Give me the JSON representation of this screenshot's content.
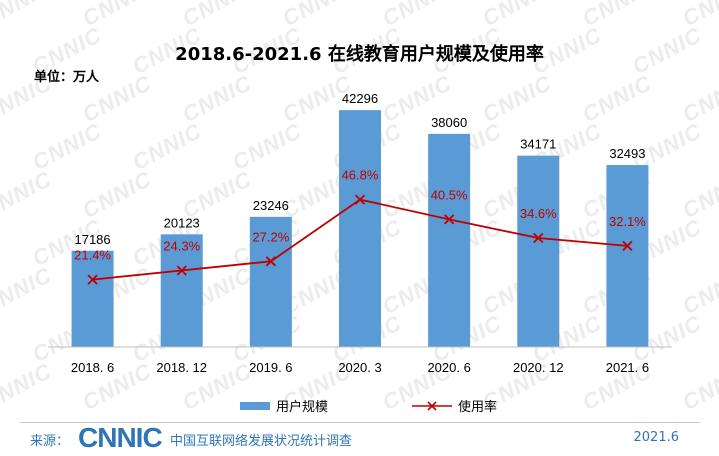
{
  "chart_data": {
    "type": "bar",
    "title": "2018.6-2021.6 在线教育用户规模及使用率",
    "unit_label": "单位：万人",
    "categories": [
      "2018. 6",
      "2018. 12",
      "2019. 6",
      "2020. 3",
      "2020. 6",
      "2020. 12",
      "2021. 6"
    ],
    "series": [
      {
        "name": "用户规模",
        "type": "bar",
        "axis": "left",
        "values": [
          17186,
          20123,
          23246,
          42296,
          38060,
          34171,
          32493
        ],
        "labels": [
          "17186",
          "20123",
          "23246",
          "42296",
          "38060",
          "34171",
          "32493"
        ],
        "color": "#5b9bd5"
      },
      {
        "name": "使用率",
        "type": "line",
        "axis": "right",
        "values": [
          21.4,
          24.3,
          27.2,
          46.8,
          40.5,
          34.6,
          32.1
        ],
        "labels": [
          "21.4%",
          "24.3%",
          "27.2%",
          "46.8%",
          "40.5%",
          "34.6%",
          "32.1%"
        ],
        "color": "#c00000"
      }
    ],
    "ylim_left": [
      0,
      45000
    ],
    "ylim_right": [
      0,
      80
    ],
    "grid": false,
    "legend_position": "bottom"
  },
  "watermark": "CNNIC",
  "footer": {
    "source_label": "来源：",
    "logo": "CNNIC",
    "org": "中国互联网络发展状况统计调查",
    "date": "2021.6"
  }
}
